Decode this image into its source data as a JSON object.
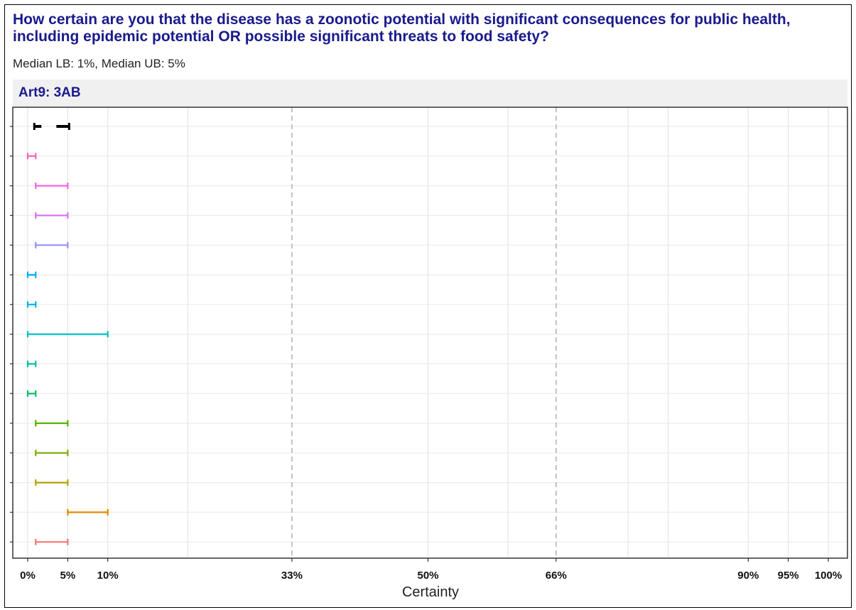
{
  "chart": {
    "title": "How certain are you that the disease has a zoonotic potential with significant consequences for public health, including epidemic potential OR possible significant threats to food safety?",
    "subtitle": "Median LB: 1%, Median UB: 5%",
    "panel_label": "Art9: 3AB",
    "xlabel": "Certainty"
  },
  "chart_data": {
    "type": "range",
    "title": "How certain are you that the disease has a zoonotic potential with significant consequences for public health, including epidemic potential OR possible significant threats to food safety?",
    "subtitle": "Median LB: 1%, Median UB: 5%",
    "panel": "Art9: 3AB",
    "xlabel": "Certainty",
    "ylabel": "",
    "xlim": [
      0,
      100
    ],
    "x_ticks": [
      0,
      5,
      10,
      33,
      50,
      66,
      90,
      95,
      100
    ],
    "x_tick_labels": [
      "0%",
      "5%",
      "10%",
      "33%",
      "50%",
      "66%",
      "90%",
      "95%",
      "100%"
    ],
    "x_minor_gridlines": [
      20,
      60,
      75,
      80
    ],
    "dashed_reference_lines": [
      33,
      66
    ],
    "grid": true,
    "summary": {
      "name": "Median",
      "lower": 1,
      "upper": 5,
      "color": "#000000"
    },
    "series": [
      {
        "lower": 0,
        "upper": 1,
        "color": "#FF61C3"
      },
      {
        "lower": 1,
        "upper": 5,
        "color": "#F564E3"
      },
      {
        "lower": 1,
        "upper": 5,
        "color": "#DB72FB"
      },
      {
        "lower": 1,
        "upper": 5,
        "color": "#9590FF"
      },
      {
        "lower": 0,
        "upper": 1,
        "color": "#00A9FF"
      },
      {
        "lower": 0,
        "upper": 1,
        "color": "#00B8E7"
      },
      {
        "lower": 0,
        "upper": 10,
        "color": "#00BFC4"
      },
      {
        "lower": 0,
        "upper": 1,
        "color": "#00C19A"
      },
      {
        "lower": 0,
        "upper": 1,
        "color": "#00BE67"
      },
      {
        "lower": 1,
        "upper": 5,
        "color": "#53B400"
      },
      {
        "lower": 1,
        "upper": 5,
        "color": "#7CAE00"
      },
      {
        "lower": 1,
        "upper": 5,
        "color": "#B79F00"
      },
      {
        "lower": 5,
        "upper": 10,
        "color": "#E58700"
      },
      {
        "lower": 1,
        "upper": 5,
        "color": "#F8766D"
      }
    ]
  }
}
